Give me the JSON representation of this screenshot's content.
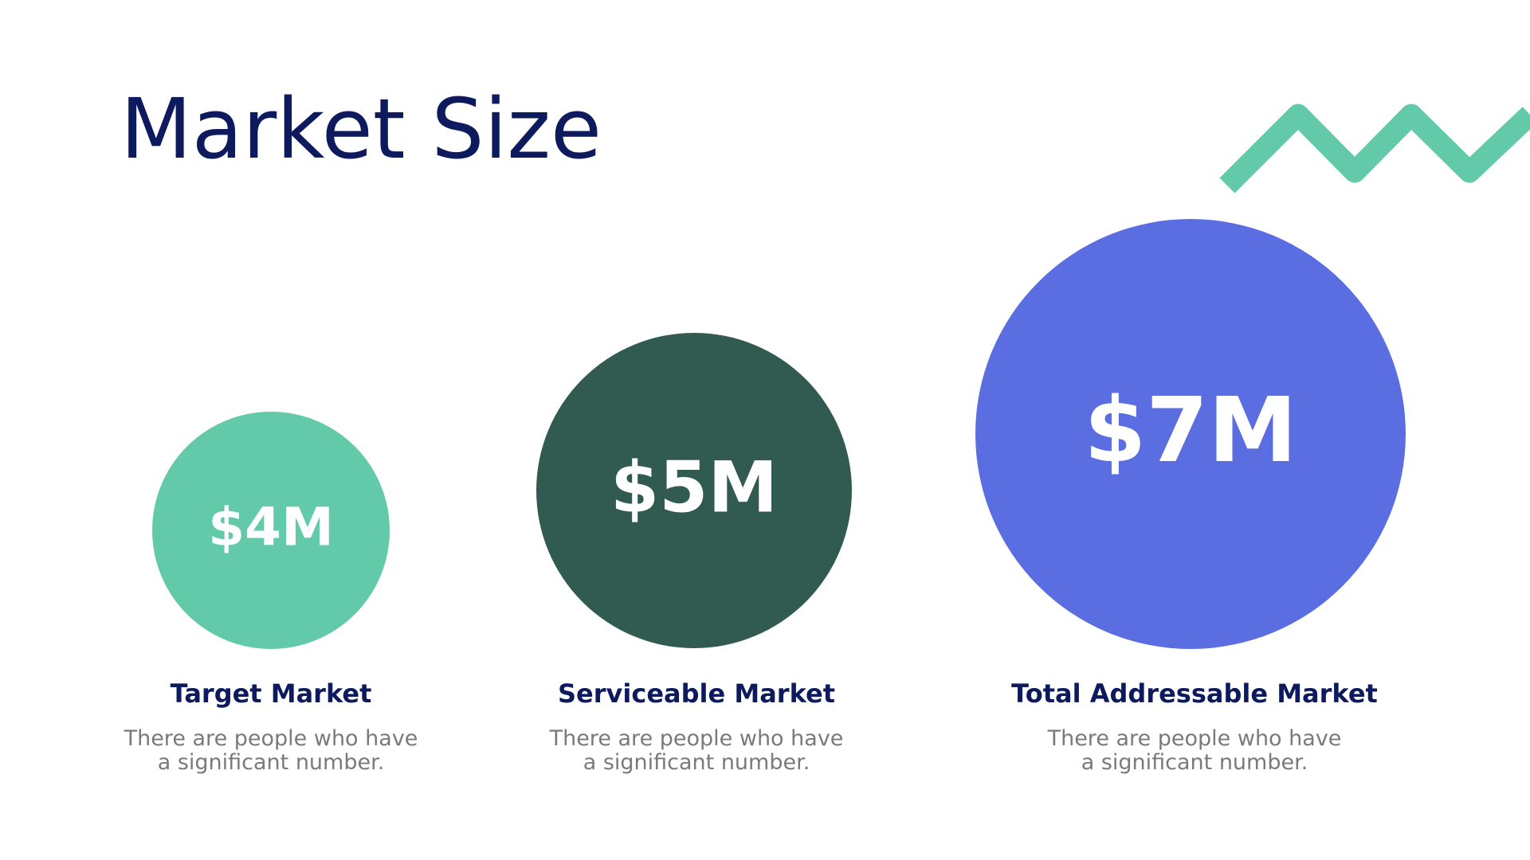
{
  "title": "Market Size",
  "items": [
    {
      "value": "$4M",
      "label": "Target Market",
      "description": [
        "There are people who have",
        "a significant number."
      ],
      "color": "#62c9a9"
    },
    {
      "value": "$5M",
      "label": "Serviceable Market",
      "description": [
        "There are people who have",
        "a significant number."
      ],
      "color": "#315a50"
    },
    {
      "value": "$7M",
      "label": "Total Addressable Market",
      "description": [
        "There are people who have",
        "a significant number."
      ],
      "color": "#5b6ee1"
    }
  ]
}
